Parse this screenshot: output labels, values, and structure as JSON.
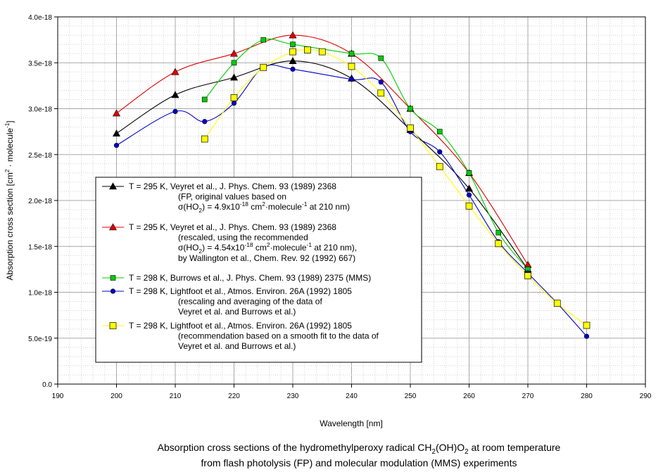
{
  "chart_data": {
    "type": "line",
    "xlabel": "Wavelength [nm]",
    "ylabel": {
      "main": "Absorption cross section [cm",
      "sup1": "2",
      "mid": " · molecule",
      "sup2": "-1",
      "end": "]"
    },
    "xlim": [
      190,
      290
    ],
    "ylim": [
      0,
      4e-18
    ],
    "x_ticks": [
      "190",
      "200",
      "210",
      "220",
      "230",
      "240",
      "250",
      "260",
      "270",
      "280",
      "290"
    ],
    "y_ticks": [
      "0.0",
      "5.0e-19",
      "1.0e-18",
      "1.5e-18",
      "2.0e-18",
      "2.5e-18",
      "3.0e-18",
      "3.5e-18",
      "4.0e-18"
    ],
    "grid": true,
    "series": [
      {
        "name": "black",
        "color": "#000000",
        "marker": "triangle",
        "x": [
          200,
          210,
          220,
          230,
          240,
          250,
          260,
          270
        ],
        "y": [
          2.73e-18,
          3.15e-18,
          3.34e-18,
          3.52e-18,
          3.33e-18,
          2.77e-18,
          2.13e-18,
          1.25e-18
        ]
      },
      {
        "name": "red",
        "color": "#e00000",
        "marker": "triangle",
        "x": [
          200,
          210,
          220,
          230,
          240,
          250,
          260,
          270
        ],
        "y": [
          2.95e-18,
          3.4e-18,
          3.6e-18,
          3.8e-18,
          3.6e-18,
          3e-18,
          2.3e-18,
          1.3e-18
        ]
      },
      {
        "name": "green",
        "color": "#00cc00",
        "marker": "square",
        "x": [
          215,
          220,
          225,
          230,
          240,
          245,
          250,
          255,
          260,
          265,
          270
        ],
        "y": [
          3.1e-18,
          3.5e-18,
          3.75e-18,
          3.7e-18,
          3.6e-18,
          3.55e-18,
          3e-18,
          2.75e-18,
          2.3e-18,
          1.65e-18,
          1.25e-18
        ]
      },
      {
        "name": "blue",
        "color": "#0000cc",
        "marker": "circle",
        "x": [
          200,
          210,
          215,
          220,
          225,
          230,
          240,
          245,
          250,
          255,
          260,
          265,
          270,
          275,
          280
        ],
        "y": [
          2.6e-18,
          2.97e-18,
          2.86e-18,
          3.06e-18,
          3.45e-18,
          3.43e-18,
          3.32e-18,
          3.29e-18,
          2.75e-18,
          2.53e-18,
          2.06e-18,
          1.55e-18,
          1.21e-18,
          8.8e-19,
          5.2e-19
        ]
      },
      {
        "name": "yellow",
        "color": "#ffff00",
        "marker": "square-big",
        "x": [
          215,
          220,
          225,
          230,
          232.5,
          235,
          240,
          245,
          250,
          255,
          260,
          265,
          270,
          275,
          280
        ],
        "y": [
          2.67e-18,
          3.12e-18,
          3.45e-18,
          3.62e-18,
          3.64e-18,
          3.62e-18,
          3.46e-18,
          3.17e-18,
          2.79e-18,
          2.37e-18,
          1.94e-18,
          1.53e-18,
          1.18e-18,
          8.8e-19,
          6.4e-19
        ]
      }
    ],
    "legend": [
      {
        "series": "black",
        "lines": [
          {
            "parts": [
              {
                "t": "T = 295 K,  Veyret et al., J. Phys. Chem. 93 (1989) 2368"
              }
            ]
          },
          {
            "parts": [
              {
                "t": "(FP, original values based on"
              }
            ]
          },
          {
            "parts": [
              {
                "t": "σ(HO"
              },
              {
                "t": "2",
                "sub": true
              },
              {
                "t": ") = 4.9x10"
              },
              {
                "t": "-18",
                "sup": true
              },
              {
                "t": " cm"
              },
              {
                "t": "2",
                "sup": true
              },
              {
                "t": "·molecule"
              },
              {
                "t": "-1",
                "sup": true
              },
              {
                "t": " at 210 nm)"
              }
            ]
          }
        ]
      },
      {
        "series": "red",
        "lines": [
          {
            "parts": [
              {
                "t": "T = 295 K,  Veyret et al., J. Phys. Chem. 93 (1989) 2368"
              }
            ]
          },
          {
            "parts": [
              {
                "t": "(rescaled, using the recommended"
              }
            ]
          },
          {
            "parts": [
              {
                "t": "σ(HO"
              },
              {
                "t": "2",
                "sub": true
              },
              {
                "t": ") = 4.54x10"
              },
              {
                "t": "-18",
                "sup": true
              },
              {
                "t": " cm"
              },
              {
                "t": "2",
                "sup": true
              },
              {
                "t": "·molecule"
              },
              {
                "t": "-1",
                "sup": true
              },
              {
                "t": " at 210 nm),"
              }
            ]
          },
          {
            "parts": [
              {
                "t": "by Wallington et al., Chem. Rev. 92 (1992) 667)"
              }
            ]
          }
        ]
      },
      {
        "series": "green",
        "lines": [
          {
            "parts": [
              {
                "t": "T = 298 K, Burrows et al., J. Phys. Chem. 93 (1989) 2375 (MMS)"
              }
            ]
          }
        ]
      },
      {
        "series": "blue",
        "lines": [
          {
            "parts": [
              {
                "t": "T = 298 K, Lightfoot et al., Atmos. Environ. 26A (1992) 1805"
              }
            ]
          },
          {
            "parts": [
              {
                "t": "(rescaling and averaging of the data of"
              }
            ]
          },
          {
            "parts": [
              {
                "t": "Veyret et al. and Burrows et al.)"
              }
            ]
          }
        ]
      },
      {
        "series": "yellow",
        "lines": [
          {
            "parts": [
              {
                "t": "T = 298 K, Lightfoot et al., Atmos. Environ. 26A (1992) 1805"
              }
            ]
          },
          {
            "parts": [
              {
                "t": "(recommendation based on a smooth fit to the data of"
              }
            ]
          },
          {
            "parts": [
              {
                "t": "Veyret et al. and Burrows et al.)"
              }
            ]
          }
        ]
      }
    ],
    "caption": [
      [
        {
          "t": "Absorption cross sections of the hydromethylperoxy radical CH"
        },
        {
          "t": "2",
          "sub": true
        },
        {
          "t": "(OH)O"
        },
        {
          "t": "2",
          "sub": true
        },
        {
          "t": " at room temperature"
        }
      ],
      [
        {
          "t": "from flash photolysis (FP) and molecular modulation (MMS) experiments"
        }
      ]
    ]
  }
}
